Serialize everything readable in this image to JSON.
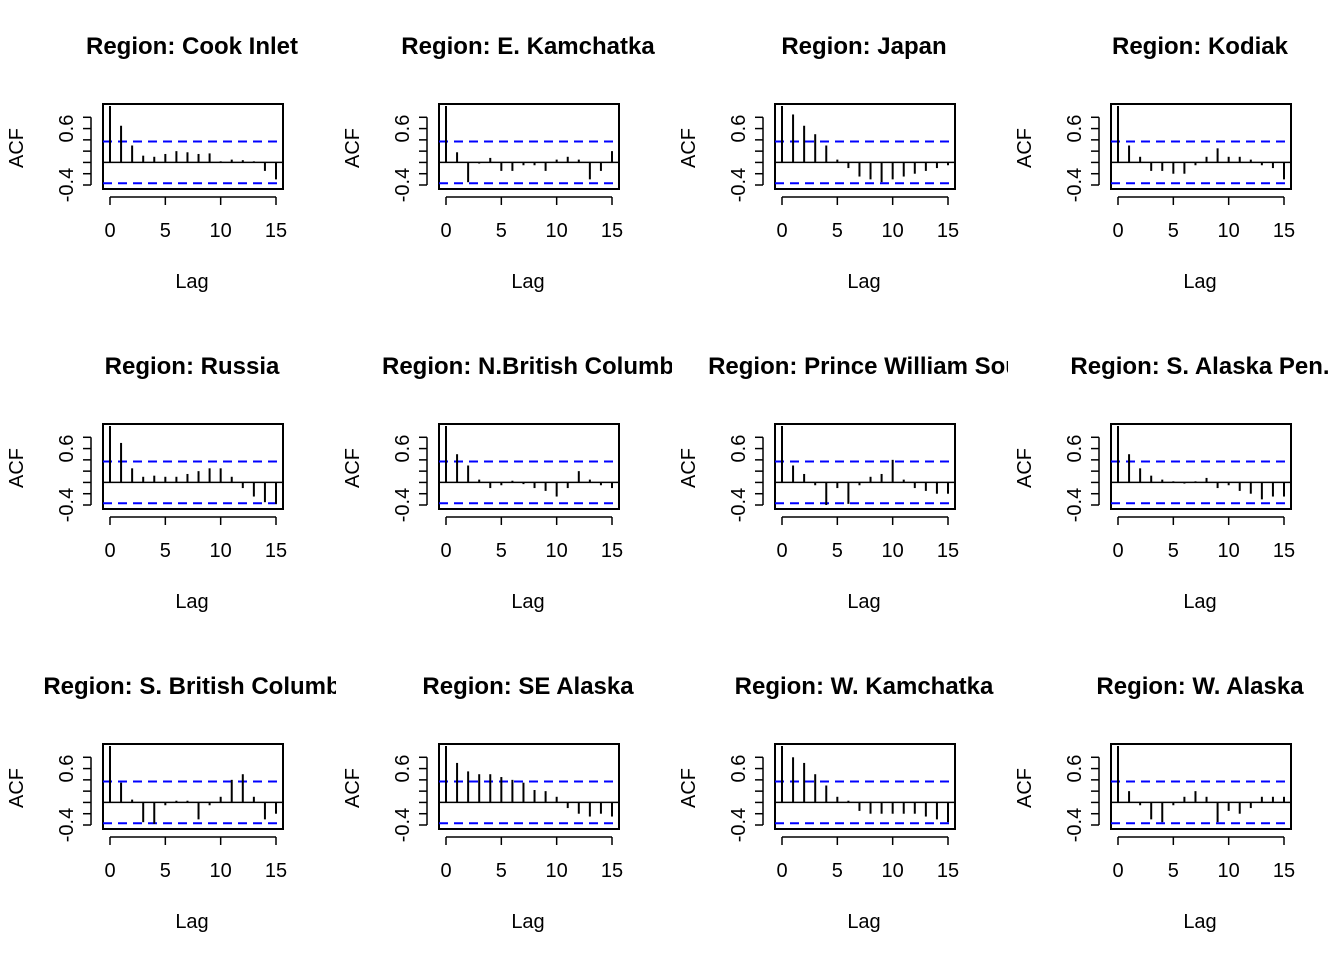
{
  "figure": {
    "conf_line_color": "#0000ff",
    "bar_color": "#000000"
  },
  "chart_data": [
    {
      "type": "bar",
      "title": "Region: Cook Inlet",
      "xlabel": "Lag",
      "ylabel": "ACF",
      "ylim": [
        -0.4,
        1.0
      ],
      "xlim": [
        0,
        15
      ],
      "xticks": [
        "0",
        "5",
        "10",
        "15"
      ],
      "yticks": [
        "-0.4",
        "0.6"
      ],
      "conf_limit": 0.37,
      "lags": [
        0,
        1,
        2,
        3,
        4,
        5,
        6,
        7,
        8,
        9,
        10,
        11,
        12,
        13,
        14,
        15
      ],
      "values": [
        1.0,
        0.65,
        0.3,
        0.12,
        0.1,
        0.15,
        0.2,
        0.18,
        0.15,
        0.16,
        0.02,
        0.05,
        0.04,
        0.02,
        -0.15,
        -0.3
      ]
    },
    {
      "type": "bar",
      "title": "Region: E. Kamchatka",
      "xlabel": "Lag",
      "ylabel": "ACF",
      "ylim": [
        -0.4,
        1.0
      ],
      "xlim": [
        0,
        15
      ],
      "xticks": [
        "0",
        "5",
        "10",
        "15"
      ],
      "yticks": [
        "-0.4",
        "0.6"
      ],
      "conf_limit": 0.37,
      "lags": [
        0,
        1,
        2,
        3,
        4,
        5,
        6,
        7,
        8,
        9,
        10,
        11,
        12,
        13,
        14,
        15
      ],
      "values": [
        1.0,
        0.18,
        -0.35,
        -0.02,
        0.08,
        -0.15,
        -0.15,
        -0.05,
        -0.05,
        -0.15,
        0.05,
        0.1,
        0.05,
        -0.3,
        -0.15,
        0.2
      ]
    },
    {
      "type": "bar",
      "title": "Region: Japan",
      "xlabel": "Lag",
      "ylabel": "ACF",
      "ylim": [
        -0.4,
        1.0
      ],
      "xlim": [
        0,
        15
      ],
      "xticks": [
        "0",
        "5",
        "10",
        "15"
      ],
      "yticks": [
        "-0.4",
        "0.6"
      ],
      "conf_limit": 0.37,
      "lags": [
        0,
        1,
        2,
        3,
        4,
        5,
        6,
        7,
        8,
        9,
        10,
        11,
        12,
        13,
        14,
        15
      ],
      "values": [
        1.0,
        0.85,
        0.65,
        0.5,
        0.3,
        0.05,
        -0.1,
        -0.25,
        -0.3,
        -0.35,
        -0.3,
        -0.25,
        -0.2,
        -0.15,
        -0.1,
        -0.05
      ]
    },
    {
      "type": "bar",
      "title": "Region: Kodiak",
      "xlabel": "Lag",
      "ylabel": "ACF",
      "ylim": [
        -0.4,
        1.0
      ],
      "xlim": [
        0,
        15
      ],
      "xticks": [
        "0",
        "5",
        "10",
        "15"
      ],
      "yticks": [
        "-0.4",
        "0.6"
      ],
      "conf_limit": 0.37,
      "lags": [
        0,
        1,
        2,
        3,
        4,
        5,
        6,
        7,
        8,
        9,
        10,
        11,
        12,
        13,
        14,
        15
      ],
      "values": [
        1.0,
        0.3,
        0.1,
        -0.15,
        -0.15,
        -0.2,
        -0.2,
        -0.05,
        0.1,
        0.25,
        0.1,
        0.1,
        0.05,
        -0.05,
        -0.1,
        -0.3
      ]
    },
    {
      "type": "bar",
      "title": "Region: Russia",
      "xlabel": "Lag",
      "ylabel": "ACF",
      "ylim": [
        -0.4,
        1.0
      ],
      "xlim": [
        0,
        15
      ],
      "xticks": [
        "0",
        "5",
        "10",
        "15"
      ],
      "yticks": [
        "-0.4",
        "0.6"
      ],
      "conf_limit": 0.37,
      "lags": [
        0,
        1,
        2,
        3,
        4,
        5,
        6,
        7,
        8,
        9,
        10,
        11,
        12,
        13,
        14,
        15
      ],
      "values": [
        1.0,
        0.7,
        0.25,
        0.1,
        0.12,
        0.1,
        0.1,
        0.15,
        0.2,
        0.25,
        0.25,
        0.1,
        -0.1,
        -0.25,
        -0.35,
        -0.38
      ]
    },
    {
      "type": "bar",
      "title": "Region: N.British Columb",
      "xlabel": "Lag",
      "ylabel": "ACF",
      "ylim": [
        -0.4,
        1.0
      ],
      "xlim": [
        0,
        15
      ],
      "xticks": [
        "0",
        "5",
        "10",
        "15"
      ],
      "yticks": [
        "-0.4",
        "0.6"
      ],
      "conf_limit": 0.37,
      "lags": [
        0,
        1,
        2,
        3,
        4,
        5,
        6,
        7,
        8,
        9,
        10,
        11,
        12,
        13,
        14,
        15
      ],
      "values": [
        1.0,
        0.5,
        0.3,
        0.05,
        -0.1,
        -0.05,
        0.03,
        -0.03,
        -0.1,
        -0.15,
        -0.25,
        -0.1,
        0.2,
        0.05,
        -0.05,
        -0.1
      ]
    },
    {
      "type": "bar",
      "title": "Region: Prince William Sou",
      "xlabel": "Lag",
      "ylabel": "ACF",
      "ylim": [
        -0.4,
        1.0
      ],
      "xlim": [
        0,
        15
      ],
      "xticks": [
        "0",
        "5",
        "10",
        "15"
      ],
      "yticks": [
        "-0.4",
        "0.6"
      ],
      "conf_limit": 0.37,
      "lags": [
        0,
        1,
        2,
        3,
        4,
        5,
        6,
        7,
        8,
        9,
        10,
        11,
        12,
        13,
        14,
        15
      ],
      "values": [
        1.0,
        0.3,
        0.15,
        -0.05,
        -0.4,
        -0.1,
        -0.38,
        -0.05,
        0.1,
        0.15,
        0.4,
        0.05,
        -0.1,
        -0.15,
        -0.2,
        -0.2
      ]
    },
    {
      "type": "bar",
      "title": "Region: S. Alaska Pen.",
      "xlabel": "Lag",
      "ylabel": "ACF",
      "ylim": [
        -0.4,
        1.0
      ],
      "xlim": [
        0,
        15
      ],
      "xticks": [
        "0",
        "5",
        "10",
        "15"
      ],
      "yticks": [
        "-0.4",
        "0.6"
      ],
      "conf_limit": 0.37,
      "lags": [
        0,
        1,
        2,
        3,
        4,
        5,
        6,
        7,
        8,
        9,
        10,
        11,
        12,
        13,
        14,
        15
      ],
      "values": [
        1.0,
        0.5,
        0.25,
        0.12,
        0.05,
        0.02,
        -0.02,
        0.02,
        0.08,
        -0.1,
        -0.05,
        -0.15,
        -0.2,
        -0.3,
        -0.25,
        -0.25
      ]
    },
    {
      "type": "bar",
      "title": "Region: S. British Columb",
      "xlabel": "Lag",
      "ylabel": "ACF",
      "ylim": [
        -0.4,
        1.0
      ],
      "xlim": [
        0,
        15
      ],
      "xticks": [
        "0",
        "5",
        "10",
        "15"
      ],
      "yticks": [
        "-0.4",
        "0.6"
      ],
      "conf_limit": 0.37,
      "lags": [
        0,
        1,
        2,
        3,
        4,
        5,
        6,
        7,
        8,
        9,
        10,
        11,
        12,
        13,
        14,
        15
      ],
      "values": [
        1.0,
        0.35,
        0.05,
        -0.35,
        -0.38,
        -0.05,
        0.03,
        0.03,
        -0.3,
        -0.05,
        0.1,
        0.4,
        0.5,
        0.1,
        -0.3,
        -0.2
      ]
    },
    {
      "type": "bar",
      "title": "Region: SE Alaska",
      "xlabel": "Lag",
      "ylabel": "ACF",
      "ylim": [
        -0.4,
        1.0
      ],
      "xlim": [
        0,
        15
      ],
      "xticks": [
        "0",
        "5",
        "10",
        "15"
      ],
      "yticks": [
        "-0.4",
        "0.6"
      ],
      "conf_limit": 0.37,
      "lags": [
        0,
        1,
        2,
        3,
        4,
        5,
        6,
        7,
        8,
        9,
        10,
        11,
        12,
        13,
        14,
        15
      ],
      "values": [
        1.0,
        0.7,
        0.55,
        0.5,
        0.5,
        0.45,
        0.4,
        0.35,
        0.22,
        0.2,
        0.1,
        -0.1,
        -0.2,
        -0.25,
        -0.2,
        -0.25
      ]
    },
    {
      "type": "bar",
      "title": "Region: W. Kamchatka",
      "xlabel": "Lag",
      "ylabel": "ACF",
      "ylim": [
        -0.4,
        1.0
      ],
      "xlim": [
        0,
        15
      ],
      "xticks": [
        "0",
        "5",
        "10",
        "15"
      ],
      "yticks": [
        "-0.4",
        "0.6"
      ],
      "conf_limit": 0.37,
      "lags": [
        0,
        1,
        2,
        3,
        4,
        5,
        6,
        7,
        8,
        9,
        10,
        11,
        12,
        13,
        14,
        15
      ],
      "values": [
        1.0,
        0.8,
        0.7,
        0.5,
        0.3,
        0.1,
        0.03,
        -0.15,
        -0.2,
        -0.2,
        -0.2,
        -0.2,
        -0.2,
        -0.25,
        -0.3,
        -0.35
      ]
    },
    {
      "type": "bar",
      "title": "Region: W. Alaska",
      "xlabel": "Lag",
      "ylabel": "ACF",
      "ylim": [
        -0.4,
        1.0
      ],
      "xlim": [
        0,
        15
      ],
      "xticks": [
        "0",
        "5",
        "10",
        "15"
      ],
      "yticks": [
        "-0.4",
        "0.6"
      ],
      "conf_limit": 0.37,
      "lags": [
        0,
        1,
        2,
        3,
        4,
        5,
        6,
        7,
        8,
        9,
        10,
        11,
        12,
        13,
        14,
        15
      ],
      "values": [
        1.0,
        0.2,
        -0.05,
        -0.3,
        -0.35,
        -0.05,
        0.1,
        0.2,
        0.1,
        -0.35,
        -0.15,
        -0.2,
        -0.1,
        0.1,
        0.1,
        0.1
      ]
    }
  ]
}
